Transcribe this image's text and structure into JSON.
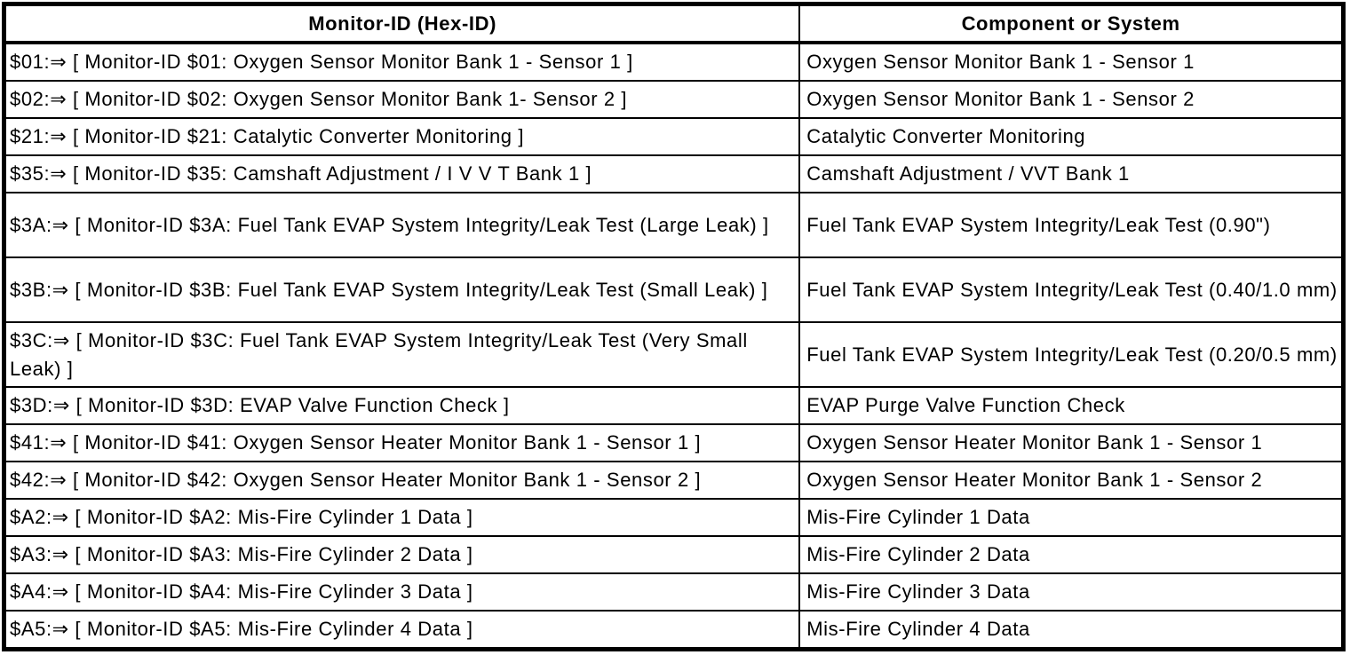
{
  "page": {
    "background_color": "#ffffff",
    "text_color": "#000000",
    "border_color": "#000000"
  },
  "table": {
    "headers": {
      "monitor_id": "Monitor-ID (Hex-ID)",
      "component": "Component or System"
    },
    "rows": [
      {
        "monitor_id": "$01:⇒ [ Monitor-ID $01: Oxygen Sensor Monitor Bank 1 - Sensor 1 ]",
        "component": "Oxygen Sensor Monitor Bank 1 - Sensor 1"
      },
      {
        "monitor_id": "$02:⇒ [ Monitor-ID $02: Oxygen Sensor Monitor Bank 1- Sensor 2 ]",
        "component": "Oxygen Sensor Monitor Bank 1 - Sensor 2"
      },
      {
        "monitor_id": "$21:⇒ [ Monitor-ID $21: Catalytic Converter Monitoring ]",
        "component": "Catalytic Converter Monitoring"
      },
      {
        "monitor_id": "$35:⇒ [ Monitor-ID $35: Camshaft Adjustment / I V V T Bank 1 ]",
        "component": "Camshaft Adjustment / VVT Bank 1"
      },
      {
        "monitor_id": "$3A:⇒ [ Monitor-ID $3A: Fuel Tank EVAP System Integrity/Leak Test (Large Leak) ]",
        "component": "Fuel Tank EVAP System Integrity/Leak Test (0.90\")"
      },
      {
        "monitor_id": "$3B:⇒ [ Monitor-ID $3B: Fuel Tank EVAP System Integrity/Leak Test (Small Leak) ]",
        "component": "Fuel Tank EVAP System Integrity/Leak Test (0.40/1.0 mm)"
      },
      {
        "monitor_id": "$3C:⇒ [ Monitor-ID $3C: Fuel Tank EVAP System Integrity/Leak Test (Very Small Leak) ]",
        "component": "Fuel Tank EVAP System Integrity/Leak Test (0.20/0.5 mm)"
      },
      {
        "monitor_id": "$3D:⇒ [ Monitor-ID $3D: EVAP Valve Function Check ]",
        "component": "EVAP Purge Valve Function Check"
      },
      {
        "monitor_id": "$41:⇒ [ Monitor-ID $41: Oxygen Sensor Heater Monitor Bank 1 - Sensor 1 ]",
        "component": "Oxygen Sensor Heater Monitor Bank 1 - Sensor 1"
      },
      {
        "monitor_id": "$42:⇒ [ Monitor-ID $42: Oxygen Sensor Heater Monitor Bank 1 - Sensor 2 ]",
        "component": "Oxygen Sensor Heater Monitor Bank 1 - Sensor 2"
      },
      {
        "monitor_id": "$A2:⇒ [ Monitor-ID $A2: Mis-Fire Cylinder 1 Data ]",
        "component": "Mis-Fire Cylinder 1 Data"
      },
      {
        "monitor_id": "$A3:⇒ [ Monitor-ID $A3: Mis-Fire Cylinder 2 Data ]",
        "component": "Mis-Fire Cylinder 2 Data"
      },
      {
        "monitor_id": "$A4:⇒ [ Monitor-ID $A4: Mis-Fire Cylinder 3 Data ]",
        "component": "Mis-Fire Cylinder 3 Data"
      },
      {
        "monitor_id": "$A5:⇒ [ Monitor-ID $A5: Mis-Fire Cylinder 4 Data ]",
        "component": "Mis-Fire Cylinder 4 Data"
      }
    ]
  }
}
